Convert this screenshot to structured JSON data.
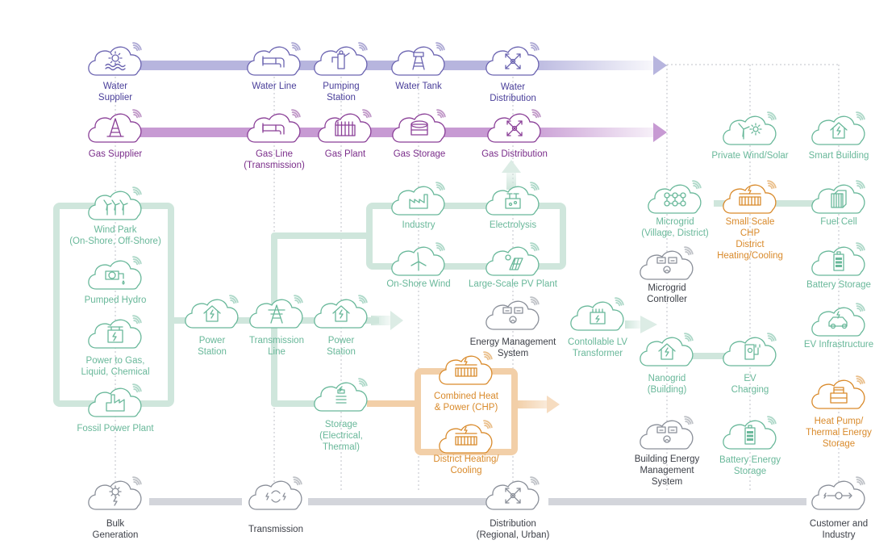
{
  "colors": {
    "water": "#4a3f9a",
    "water_stroke": "#6a63b0",
    "water_line": "#b7b5de",
    "gas": "#7a2d8a",
    "gas_stroke": "#8a3f97",
    "gas_line": "#c79ad3",
    "green": "#69b89a",
    "green_line": "#cfe6dc",
    "orange": "#d98a2b",
    "orange_line": "#f2cfa8",
    "grey": "#555a66",
    "grey_line": "#d3d5db",
    "dark_text": "#3c3f47"
  },
  "labels": {
    "water_supplier": [
      "Water",
      "Supplier"
    ],
    "water_line": [
      "Water Line"
    ],
    "pumping_station": [
      "Pumping",
      "Station"
    ],
    "water_tank": [
      "Water Tank"
    ],
    "water_distribution": [
      "Water",
      "Distribution"
    ],
    "gas_supplier": [
      "Gas Supplier"
    ],
    "gas_line": [
      "Gas Line",
      "(Transmission)"
    ],
    "gas_plant": [
      "Gas Plant"
    ],
    "gas_storage": [
      "Gas Storage"
    ],
    "gas_distribution": [
      "Gas Distribution"
    ],
    "private_wind_solar": [
      "Private Wind/Solar"
    ],
    "smart_building": [
      "Smart Building"
    ],
    "wind_park": [
      "Wind Park",
      "(On-Shore, Off-Shore)"
    ],
    "pumped_hydro": [
      "Pumped Hydro"
    ],
    "power_to_gas": [
      "Power to Gas,",
      "Liquid, Chemical"
    ],
    "fossil_power_plant": [
      "Fossil Power Plant"
    ],
    "power_station_1": [
      "Power",
      "Station"
    ],
    "transmission_line": [
      "Transmission",
      "Line"
    ],
    "power_station_2": [
      "Power",
      "Station"
    ],
    "industry": [
      "Industry"
    ],
    "electrolysis": [
      "Electrolysis"
    ],
    "onshore_wind": [
      "On-Shore Wind"
    ],
    "large_pv": [
      "Large-Scale PV Plant"
    ],
    "energy_mgmt": [
      "Energy Management",
      "System"
    ],
    "storage": [
      "Storage",
      "(Electrical,",
      "Thermal)"
    ],
    "chp": [
      "Combined Heat",
      "& Power (CHP)"
    ],
    "district_heating": [
      "District Heating/",
      "Cooling"
    ],
    "lv_transformer": [
      "Contollable LV",
      "Transformer"
    ],
    "microgrid": [
      "Microgrid",
      "(Village, District)"
    ],
    "small_chp": [
      "Small Scale",
      "CHP",
      "District",
      "Heating/Cooling"
    ],
    "fuel_cell": [
      "Fuel Cell"
    ],
    "microgrid_controller": [
      "Microgrid",
      "Controller"
    ],
    "battery_storage_1": [
      "Battery Storage"
    ],
    "nanogrid": [
      "Nanogrid",
      "(Building)"
    ],
    "ev_charging": [
      "EV",
      "Charging"
    ],
    "ev_infrastructure": [
      "EV Infrastructure"
    ],
    "building_ems": [
      "Building Energy",
      "Management",
      "System"
    ],
    "battery_storage_2": [
      "Battery Energy",
      "Storage"
    ],
    "heat_pump": [
      "Heat Pump/",
      "Thermal Energy",
      "Storage"
    ],
    "bulk_generation": [
      "Bulk",
      "Generation"
    ],
    "transmission": [
      "Transmission"
    ],
    "distribution": [
      "Distribution",
      "(Regional, Urban)"
    ],
    "customer_industry": [
      "Customer and",
      "Industry"
    ]
  }
}
